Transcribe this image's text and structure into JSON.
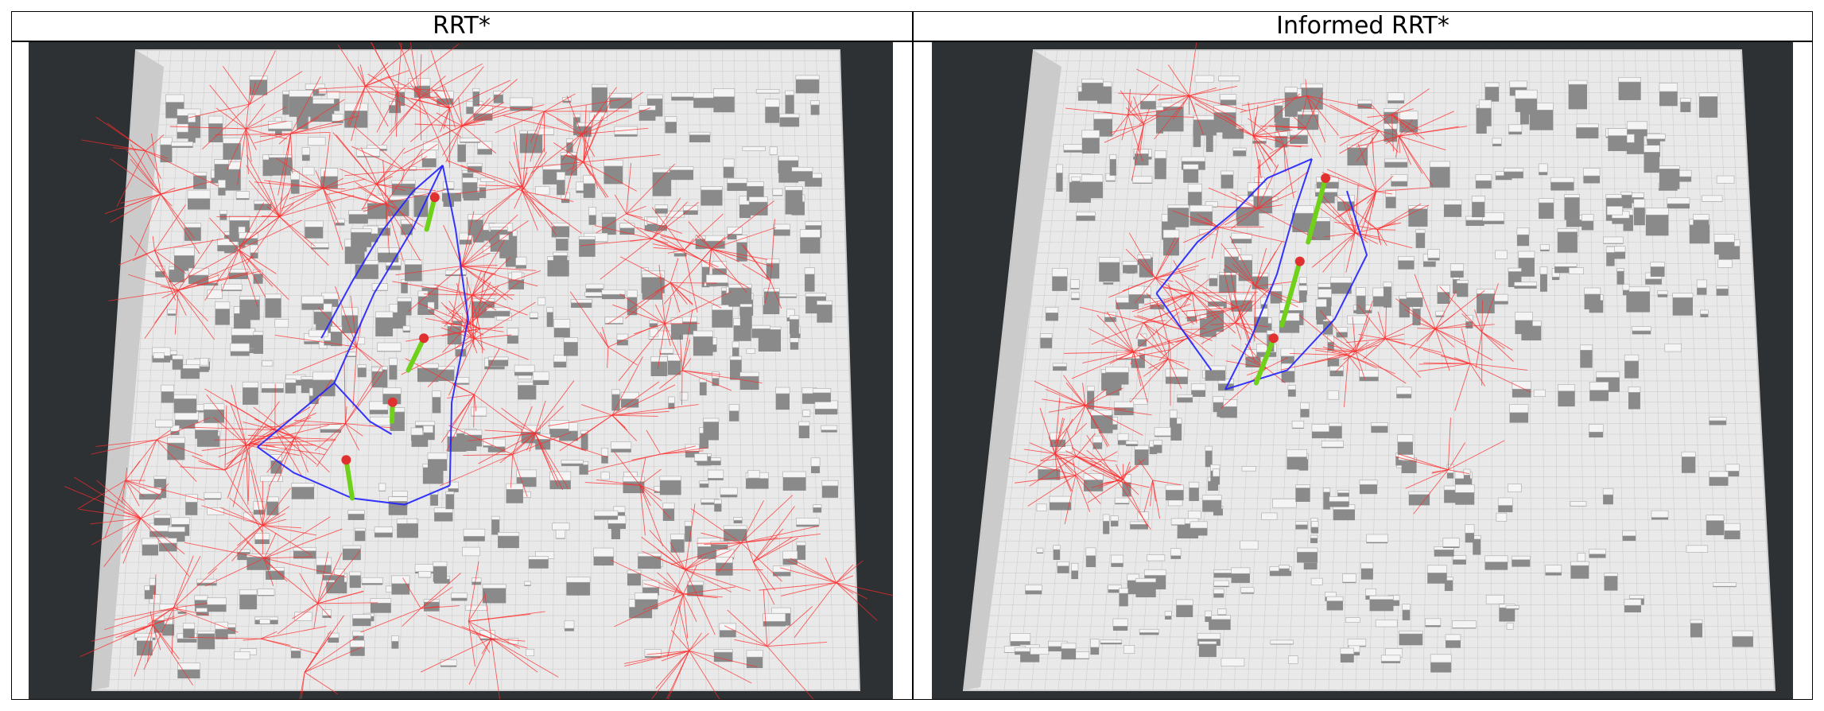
{
  "panels": [
    {
      "title": "RRT*",
      "colors": {
        "tree": "#ff2a2a",
        "path": "#2020ff",
        "best": "#6fd11a",
        "background": "#2d3133",
        "floor": "#e9e9e9",
        "block": "#8a8a8a"
      }
    },
    {
      "title": "Informed RRT*",
      "colors": {
        "tree": "#ff2a2a",
        "path": "#2020ff",
        "best": "#6fd11a",
        "background": "#2d3133",
        "floor": "#e9e9e9",
        "block": "#8a8a8a"
      }
    }
  ]
}
